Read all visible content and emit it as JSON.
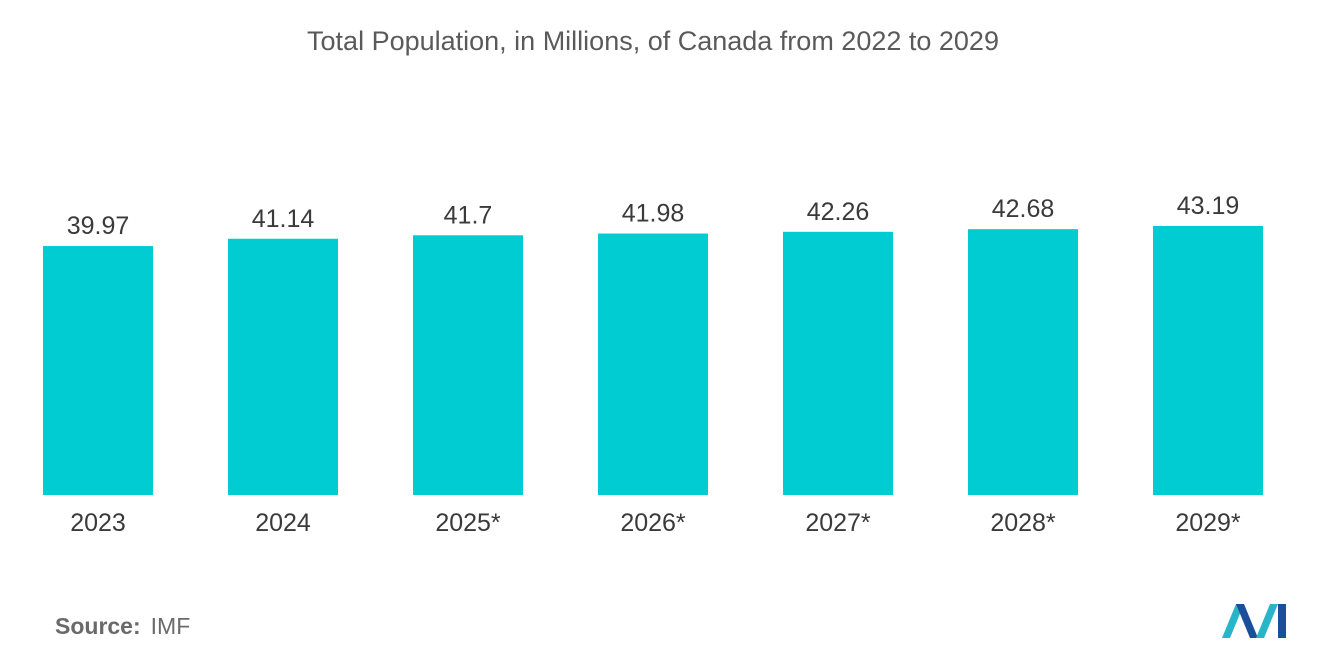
{
  "chart_data": {
    "type": "bar",
    "title": "Total Population, in Millions, of Canada from 2022 to 2029",
    "categories": [
      "2023",
      "2024",
      "2025*",
      "2026*",
      "2027*",
      "2028*",
      "2029*"
    ],
    "values": [
      39.97,
      41.14,
      41.7,
      41.98,
      42.26,
      42.68,
      43.19
    ],
    "value_labels": [
      "39.97",
      "41.14",
      "41.7",
      "41.98",
      "42.26",
      "42.68",
      "43.19"
    ],
    "xlabel": "",
    "ylabel": "",
    "ylim": [
      0,
      43.19
    ],
    "grid": false,
    "bar_color": "#00ccd1"
  },
  "source": {
    "label": "Source:",
    "value": "IMF"
  },
  "colors": {
    "logo_dark": "#1b4f9c",
    "logo_light": "#29b5c9"
  }
}
